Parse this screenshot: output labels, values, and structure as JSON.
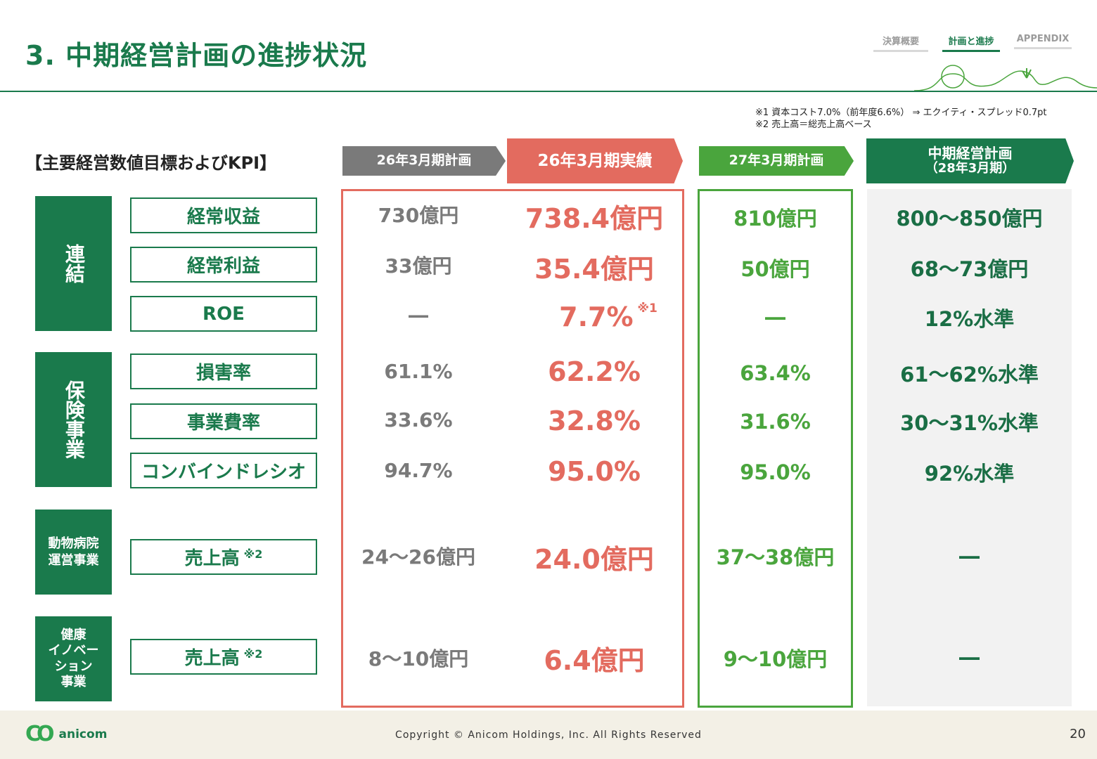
{
  "header": {
    "title": "3. 中期経営計画の進捗状況",
    "nav_tabs": [
      "決算概要",
      "計画と進捗",
      "APPENDIX"
    ],
    "active_tab": "計画と進捗"
  },
  "notes": [
    "※1  資本コスト7.0%（前年度6.6%）  ⇒  エクイティ・スプレッド0.7pt",
    "※2  売上高＝総売上高ベース"
  ],
  "section_title": "【主要経営数値目標およびKPI】",
  "columns": {
    "plan_26": "26年3月期計画",
    "actual_26": "26年3月期実績",
    "plan_27": "27年3月期計画",
    "midterm_line1": "中期経営計画",
    "midterm_line2": "（28年3月期）"
  },
  "categories": {
    "consolidated": "連結",
    "insurance": "保険事業",
    "hospital_line1": "動物病院",
    "hospital_line2": "運営事業",
    "health_line1": "健康",
    "health_line2": "イノベー",
    "health_line3": "ション",
    "health_line4": "事業"
  },
  "rows": [
    {
      "metric": "経常収益",
      "note": "",
      "plan_26": "730億円",
      "actual_26": "738.4億円",
      "actual_note": "",
      "plan_27": "810億円",
      "midterm": "800～850億円"
    },
    {
      "metric": "経常利益",
      "note": "",
      "plan_26": "33億円",
      "actual_26": "35.4億円",
      "actual_note": "",
      "plan_27": "50億円",
      "midterm": "68～73億円"
    },
    {
      "metric": "ROE",
      "note": "",
      "plan_26": "―",
      "actual_26": "7.7%",
      "actual_note": "※1",
      "plan_27": "―",
      "midterm": "12%水準"
    },
    {
      "metric": "損害率",
      "note": "",
      "plan_26": "61.1%",
      "actual_26": "62.2%",
      "actual_note": "",
      "plan_27": "63.4%",
      "midterm": "61～62%水準"
    },
    {
      "metric": "事業費率",
      "note": "",
      "plan_26": "33.6%",
      "actual_26": "32.8%",
      "actual_note": "",
      "plan_27": "31.6%",
      "midterm": "30～31%水準"
    },
    {
      "metric": "コンバインドレシオ",
      "note": "",
      "plan_26": "94.7%",
      "actual_26": "95.0%",
      "actual_note": "",
      "plan_27": "95.0%",
      "midterm": "92%水準"
    },
    {
      "metric": "売上高",
      "note": "※2",
      "plan_26": "24～26億円",
      "actual_26": "24.0億円",
      "actual_note": "",
      "plan_27": "37～38億円",
      "midterm": "―"
    },
    {
      "metric": "売上高",
      "note": "※2",
      "plan_26": "8～10億円",
      "actual_26": "6.4億円",
      "actual_note": "",
      "plan_27": "9～10億円",
      "midterm": "―"
    }
  ],
  "footer": {
    "logo_text": "anicom",
    "copyright": "Copyright © Anicom Holdings, Inc. All Rights Reserved",
    "page_number": "20"
  },
  "colors": {
    "brand_green": "#1a7a4c",
    "light_green": "#4aa53d",
    "actual_red": "#e36b5f",
    "plan_gray": "#7a7a7a"
  }
}
